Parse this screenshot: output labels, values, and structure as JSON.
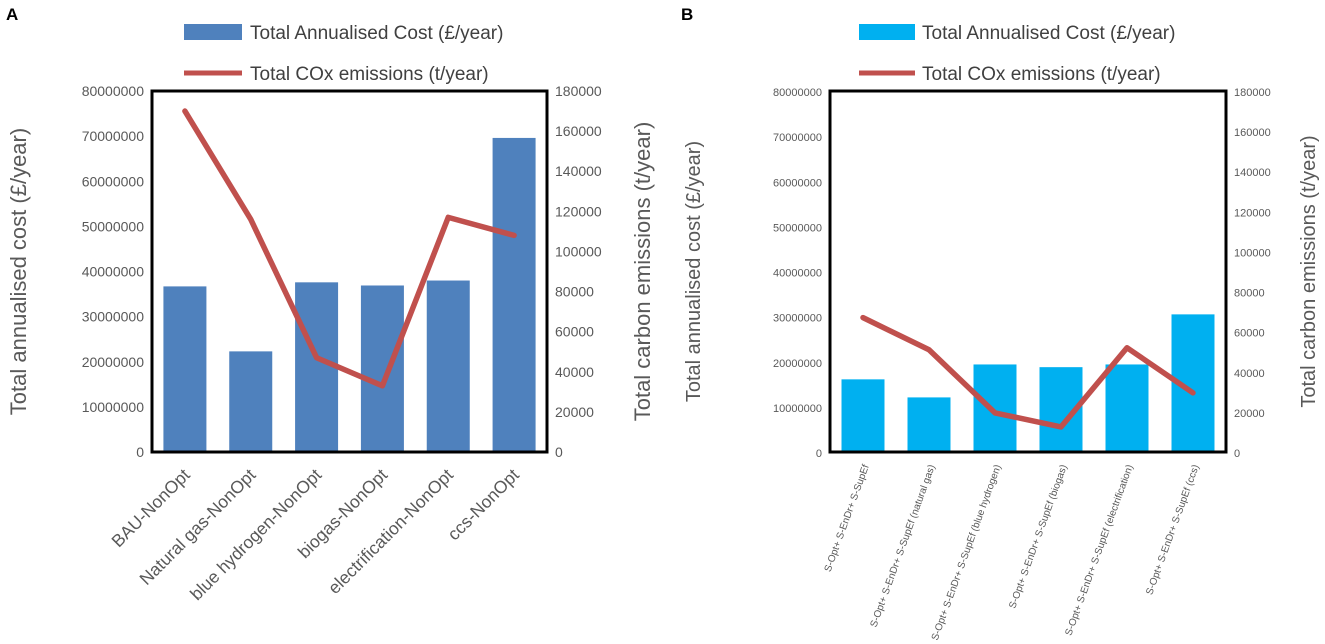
{
  "chart_data": [
    {
      "panel": "A",
      "type": "bar",
      "legend": {
        "bar_label": "Total Annualised Cost (£/year)",
        "line_label": "Total COx emissions (t/year)",
        "position": "top"
      },
      "ylabel_left": "Total annualised cost (£/year)",
      "ylabel_right": "Total carbon emissions (t/year)",
      "left_ticks": [
        "0",
        "10000000",
        "20000000",
        "30000000",
        "40000000",
        "50000000",
        "60000000",
        "70000000",
        "80000000"
      ],
      "right_ticks": [
        "0",
        "20000",
        "40000",
        "60000",
        "80000",
        "100000",
        "120000",
        "140000",
        "160000",
        "180000"
      ],
      "ylim_left": [
        0,
        80000000
      ],
      "ylim_right": [
        0,
        180000
      ],
      "categories": [
        "BAU-NonOpt",
        "Natural gas-NonOpt",
        "blue hydrogen-NonOpt",
        "biogas-NonOpt",
        "electrification-NonOpt",
        "ccs-NonOpt"
      ],
      "series": [
        {
          "name": "Total Annualised Cost (£/year)",
          "type": "bar",
          "axis": "left",
          "values": [
            36700000,
            22300000,
            37600000,
            36900000,
            38000000,
            69600000
          ]
        },
        {
          "name": "Total COx emissions (t/year)",
          "type": "line",
          "axis": "right",
          "values": [
            170000,
            116000,
            47000,
            33000,
            117000,
            108000
          ]
        }
      ],
      "colors": {
        "bar": "#4F81BD",
        "line": "#C0504D"
      }
    },
    {
      "panel": "B",
      "type": "bar",
      "legend": {
        "bar_label": "Total Annualised Cost (£/year)",
        "line_label": "Total COx emissions (t/year)",
        "position": "top"
      },
      "ylabel_left": "Total annualised cost (£/year)",
      "ylabel_right": "Total carbon emissions (t/year)",
      "left_ticks": [
        "0",
        "10000000",
        "20000000",
        "30000000",
        "40000000",
        "50000000",
        "60000000",
        "70000000",
        "80000000"
      ],
      "right_ticks": [
        "0",
        "20000",
        "40000",
        "60000",
        "80000",
        "100000",
        "120000",
        "140000",
        "160000",
        "180000"
      ],
      "ylim_left": [
        0,
        80000000
      ],
      "ylim_right": [
        0,
        180000
      ],
      "categories": [
        "S-Opt+ S-EnDr+ S-SupEf",
        "S-Opt+ S-EnDr+ S-SupEf (natural gas)",
        "S-Opt+ S-EnDr+ S-SupEf (blue hydrogen)",
        "S-Opt+ S-EnDr+ S-SupEf (biogas)",
        "S-Opt+ S-EnDr+ S-SupEf (electrification)",
        "S-Opt+ S-EnDr+ S-SupEf (ccs)"
      ],
      "series": [
        {
          "name": "Total Annualised Cost (£/year)",
          "type": "bar",
          "axis": "left",
          "values": [
            16100000,
            12100000,
            19400000,
            18800000,
            19400000,
            30500000
          ]
        },
        {
          "name": "Total COx emissions (t/year)",
          "type": "line",
          "axis": "right",
          "values": [
            67000,
            51000,
            19500,
            12500,
            52000,
            29500
          ]
        }
      ],
      "colors": {
        "bar": "#00B0F0",
        "line": "#C0504D"
      }
    }
  ]
}
